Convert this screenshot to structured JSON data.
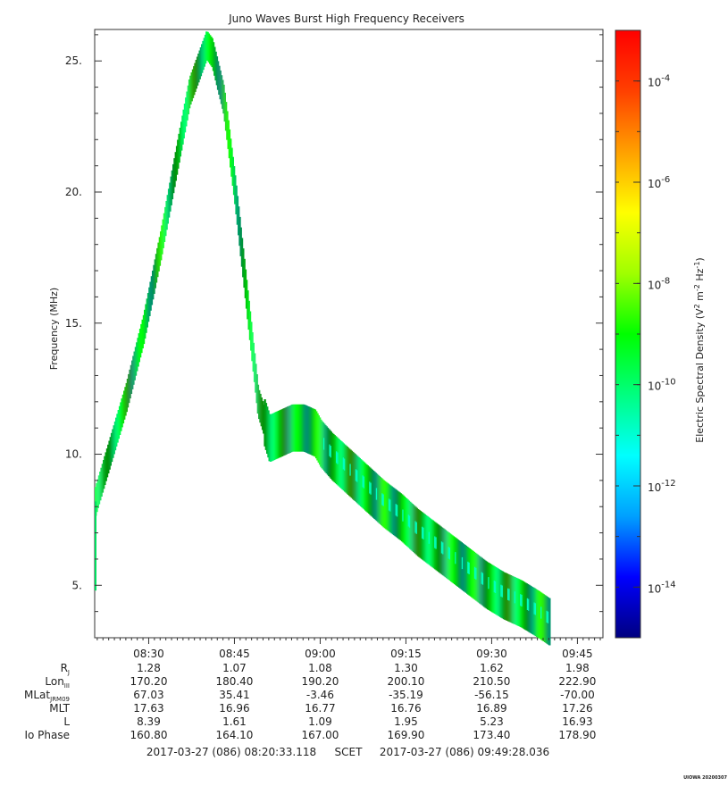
{
  "chart_data": {
    "type": "heatmap",
    "title": "Juno Waves Burst High Frequency Receivers",
    "ylabel": "Frequency (MHz)",
    "ylim": [
      3.0,
      26.2
    ],
    "y_ticks": [
      5,
      10,
      15,
      20,
      25
    ],
    "y_tick_labels": [
      "5.",
      "10.",
      "15.",
      "20.",
      "25."
    ],
    "x_time_range": [
      "08:20:33",
      "09:49:28"
    ],
    "x_ticks": [
      "08:30",
      "08:45",
      "09:00",
      "09:15",
      "09:30",
      "09:45"
    ],
    "series": [
      {
        "name": "",
        "x": [
          "08:20:33",
          "08:23",
          "08:26",
          "08:29",
          "08:32",
          "08:35",
          "08:37",
          "08:39",
          "08:40",
          "08:41",
          "08:43",
          "08:45",
          "08:47",
          "08:49",
          "08:51",
          "08:53",
          "08:55",
          "08:57",
          "08:59",
          "09:00",
          "09:02",
          "09:05",
          "09:08",
          "09:11",
          "09:14",
          "09:17",
          "09:20",
          "09:23",
          "09:26",
          "09:29",
          "09:32",
          "09:35",
          "09:38",
          "09:40"
        ],
        "y": [
          8.2,
          10.0,
          12.2,
          14.8,
          18.0,
          21.5,
          23.8,
          25.0,
          25.6,
          25.3,
          23.5,
          20.0,
          16.0,
          12.0,
          10.6,
          10.8,
          11.0,
          11.0,
          10.8,
          10.4,
          9.9,
          9.3,
          8.7,
          8.1,
          7.6,
          7.0,
          6.5,
          6.0,
          5.5,
          5.0,
          4.6,
          4.3,
          3.9,
          3.6
        ]
      }
    ],
    "colorbar": {
      "label": "Electric Spectral Density (V² m⁻² Hz⁻¹)",
      "label_main": "Electric Spectral Density (V",
      "label_end": "Hz",
      "scale": "log",
      "range": [
        1e-15,
        0.001
      ],
      "tick_exponents": [
        "-4",
        "-6",
        "-8",
        "-10",
        "-12",
        "-14"
      ],
      "tick_base": "10",
      "colors": [
        "#000080",
        "#0000ff",
        "#00a0ff",
        "#00ffff",
        "#00ff80",
        "#00ff00",
        "#a0ff00",
        "#ffff00",
        "#ffa000",
        "#ff4000",
        "#ff0000"
      ]
    },
    "ephemeris": {
      "rows": [
        {
          "label": "R",
          "sub": "J",
          "values": [
            "1.28",
            "1.07",
            "1.08",
            "1.30",
            "1.62",
            "1.98"
          ]
        },
        {
          "label": "Lon",
          "sub": "III",
          "values": [
            "170.20",
            "180.40",
            "190.20",
            "200.10",
            "210.50",
            "222.90"
          ]
        },
        {
          "label": "MLat",
          "sub": "JRM09",
          "values": [
            "67.03",
            "35.41",
            "-3.46",
            "-35.19",
            "-56.15",
            "-70.00"
          ]
        },
        {
          "label": "MLT",
          "sub": "",
          "values": [
            "17.63",
            "16.96",
            "16.77",
            "16.76",
            "16.89",
            "17.26"
          ]
        },
        {
          "label": "L",
          "sub": "",
          "values": [
            "8.39",
            "1.61",
            "1.09",
            "1.95",
            "5.23",
            "16.93"
          ]
        },
        {
          "label": "Io Phase",
          "sub": "",
          "values": [
            "160.80",
            "164.10",
            "167.00",
            "169.90",
            "173.40",
            "178.90"
          ]
        }
      ]
    },
    "footer": {
      "start": "2017-03-27 (086) 08:20:33.118",
      "label": "SCET",
      "end": "2017-03-27 (086) 09:49:28.036"
    },
    "stamp": "UIOWA 20200307"
  }
}
